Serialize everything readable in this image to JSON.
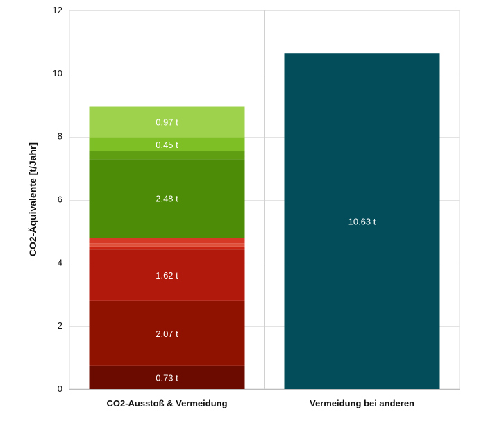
{
  "chart_data": {
    "type": "bar",
    "stacked": true,
    "ylabel": "CO2-Äquivalente [t/Jahr]",
    "xlabel": "",
    "ylim": [
      0,
      12
    ],
    "yticks": [
      0,
      2,
      4,
      6,
      8,
      10,
      12
    ],
    "grid": true,
    "categories": [
      "CO2-Ausstoß & Vermeidung",
      "Vermeidung bei anderen"
    ],
    "stacks": [
      [
        {
          "value": 0.73,
          "label": "0.73 t",
          "color": "#6b0b00"
        },
        {
          "value": 2.07,
          "label": "2.07 t",
          "color": "#8f1200"
        },
        {
          "value": 1.62,
          "label": "1.62 t",
          "color": "#b0190b"
        },
        {
          "value": 0.1,
          "label": "",
          "color": "#cc2412"
        },
        {
          "value": 0.1,
          "label": "",
          "color": "#e0513c"
        },
        {
          "value": 0.18,
          "label": "",
          "color": "#d63a26"
        },
        {
          "value": 2.48,
          "label": "2.48 t",
          "color": "#4d8c06"
        },
        {
          "value": 0.25,
          "label": "",
          "color": "#5f9e12"
        },
        {
          "value": 0.45,
          "label": "0.45 t",
          "color": "#7fbf26"
        },
        {
          "value": 0.97,
          "label": "0.97 t",
          "color": "#9fd24c"
        }
      ],
      [
        {
          "value": 10.63,
          "label": "10.63 t",
          "color": "#034d5a"
        }
      ]
    ]
  }
}
